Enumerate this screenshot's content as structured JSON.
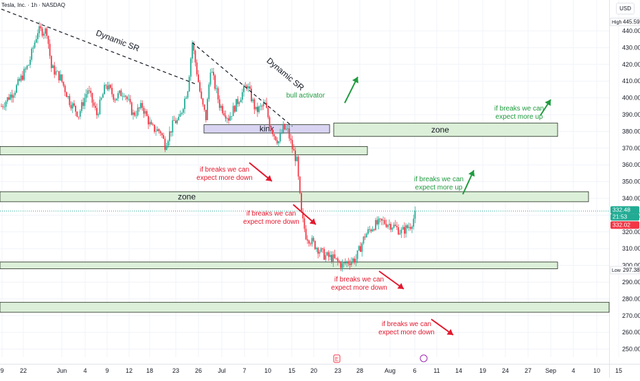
{
  "header": {
    "symbol_title": "Tesla, Inc. · 1h · NASDAQ",
    "currency_button": "USD"
  },
  "chart_data": {
    "type": "candlestick",
    "title": "",
    "xlabel": "",
    "ylabel": "",
    "ylim": [
      248,
      452
    ],
    "y_ticks": [
      250,
      260,
      270,
      280,
      290,
      300,
      310,
      320,
      330,
      340,
      350,
      360,
      370,
      380,
      390,
      400,
      410,
      420,
      430,
      440
    ],
    "x_ticks": [
      "9",
      "22",
      "Jun",
      "4",
      "9",
      "12",
      "18",
      "23",
      "26",
      "Jul",
      "7",
      "10",
      "15",
      "20",
      "23",
      "28",
      "Aug",
      "6",
      "11",
      "14",
      "19",
      "24",
      "27",
      "Sep",
      "4",
      "10",
      "15"
    ],
    "price_path": [
      [
        0,
        395
      ],
      [
        3,
        405
      ],
      [
        6,
        420
      ],
      [
        8,
        440
      ],
      [
        10,
        440
      ],
      [
        11,
        418
      ],
      [
        13,
        412
      ],
      [
        15,
        398
      ],
      [
        17,
        390
      ],
      [
        19,
        405
      ],
      [
        21,
        390
      ],
      [
        23,
        408
      ],
      [
        25,
        400
      ],
      [
        27,
        404
      ],
      [
        29,
        390
      ],
      [
        31,
        395
      ],
      [
        33,
        382
      ],
      [
        35,
        380
      ],
      [
        36,
        372
      ],
      [
        38,
        386
      ],
      [
        39,
        386
      ],
      [
        41,
        406
      ],
      [
        42,
        433
      ],
      [
        44,
        398
      ],
      [
        45,
        388
      ],
      [
        46,
        418
      ],
      [
        48,
        396
      ],
      [
        50,
        388
      ],
      [
        52,
        398
      ],
      [
        54,
        408
      ],
      [
        56,
        392
      ],
      [
        58,
        396
      ],
      [
        59,
        385
      ],
      [
        60,
        378
      ],
      [
        61,
        374
      ],
      [
        62,
        382
      ],
      [
        63,
        380
      ],
      [
        64,
        370
      ],
      [
        65,
        362
      ],
      [
        66,
        330
      ],
      [
        67,
        318
      ],
      [
        69,
        312
      ],
      [
        71,
        306
      ],
      [
        73,
        304
      ],
      [
        75,
        300
      ],
      [
        76,
        302
      ],
      [
        78,
        304
      ],
      [
        80,
        318
      ],
      [
        82,
        324
      ],
      [
        84,
        326
      ],
      [
        86,
        324
      ],
      [
        88,
        320
      ],
      [
        90,
        324
      ],
      [
        91,
        330
      ]
    ],
    "last_price": "332.48",
    "countdown": "21:53",
    "bid_price": "332.02",
    "high": {
      "label": "High",
      "value": "445.59"
    },
    "low": {
      "label": "Low",
      "value": "297.38"
    },
    "zones": [
      {
        "low": 379,
        "high": 384,
        "label": "kink"
      },
      {
        "low": 377,
        "high": 385,
        "label": "zone"
      },
      {
        "low": 366,
        "high": 371,
        "label": ""
      },
      {
        "low": 338,
        "high": 344,
        "label": "zone"
      },
      {
        "low": 298,
        "high": 302,
        "label": ""
      },
      {
        "low": 272,
        "high": 278,
        "label": ""
      }
    ],
    "trendlines": [
      {
        "label": "Dynamic SR",
        "from": [
          0,
          453
        ],
        "to": [
          43,
          408
        ]
      },
      {
        "label": "Dynamic SR",
        "from": [
          42,
          433
        ],
        "to": [
          64,
          383
        ]
      }
    ],
    "annotations": [
      {
        "text": "bull activator",
        "color": "#1f9b3e"
      },
      {
        "text": "if breaks we can\nexpect more up",
        "color": "#1f9b3e"
      },
      {
        "text": "if breaks we can\nexpect more up",
        "color": "#1f9b3e"
      },
      {
        "text": "if breaks we can\nexpect more down",
        "color": "#e3182d"
      },
      {
        "text": "if breaks we can\nexpect more down",
        "color": "#e3182d"
      },
      {
        "text": "if breaks we can\nexpect more down",
        "color": "#e3182d"
      },
      {
        "text": "if breaks we can\nexpect more down",
        "color": "#e3182d"
      }
    ],
    "colors": {
      "up": "#22ab94",
      "down": "#f23645",
      "zone_fill": "#dcefd8",
      "kink_fill": "#d9d4f2",
      "bull_text": "#1f9b3e",
      "bear_text": "#e3182d",
      "last_price_bg": "#22ab94",
      "bid_bg": "#f23645"
    }
  }
}
